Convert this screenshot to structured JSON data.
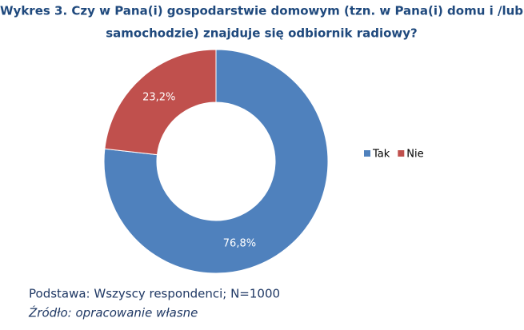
{
  "chart_data": {
    "type": "donut",
    "title": [
      "Wykres 3. Czy w Pana(i) gospodarstwie domowym (tzn. w Pana(i) domu i /lub",
      "samochodzie) znajduje się odbiornik radiowy?"
    ],
    "categories": [
      "Tak",
      "Nie"
    ],
    "values": [
      76.8,
      23.2
    ],
    "value_labels": [
      "76,8%",
      "23,2%"
    ],
    "colors": [
      "#4f81bd",
      "#c0504d"
    ],
    "legend": "right",
    "footnotes": [
      "Podstawa: Wszyscy respondenci; N=1000",
      "Źródło: opracowanie własne"
    ]
  }
}
